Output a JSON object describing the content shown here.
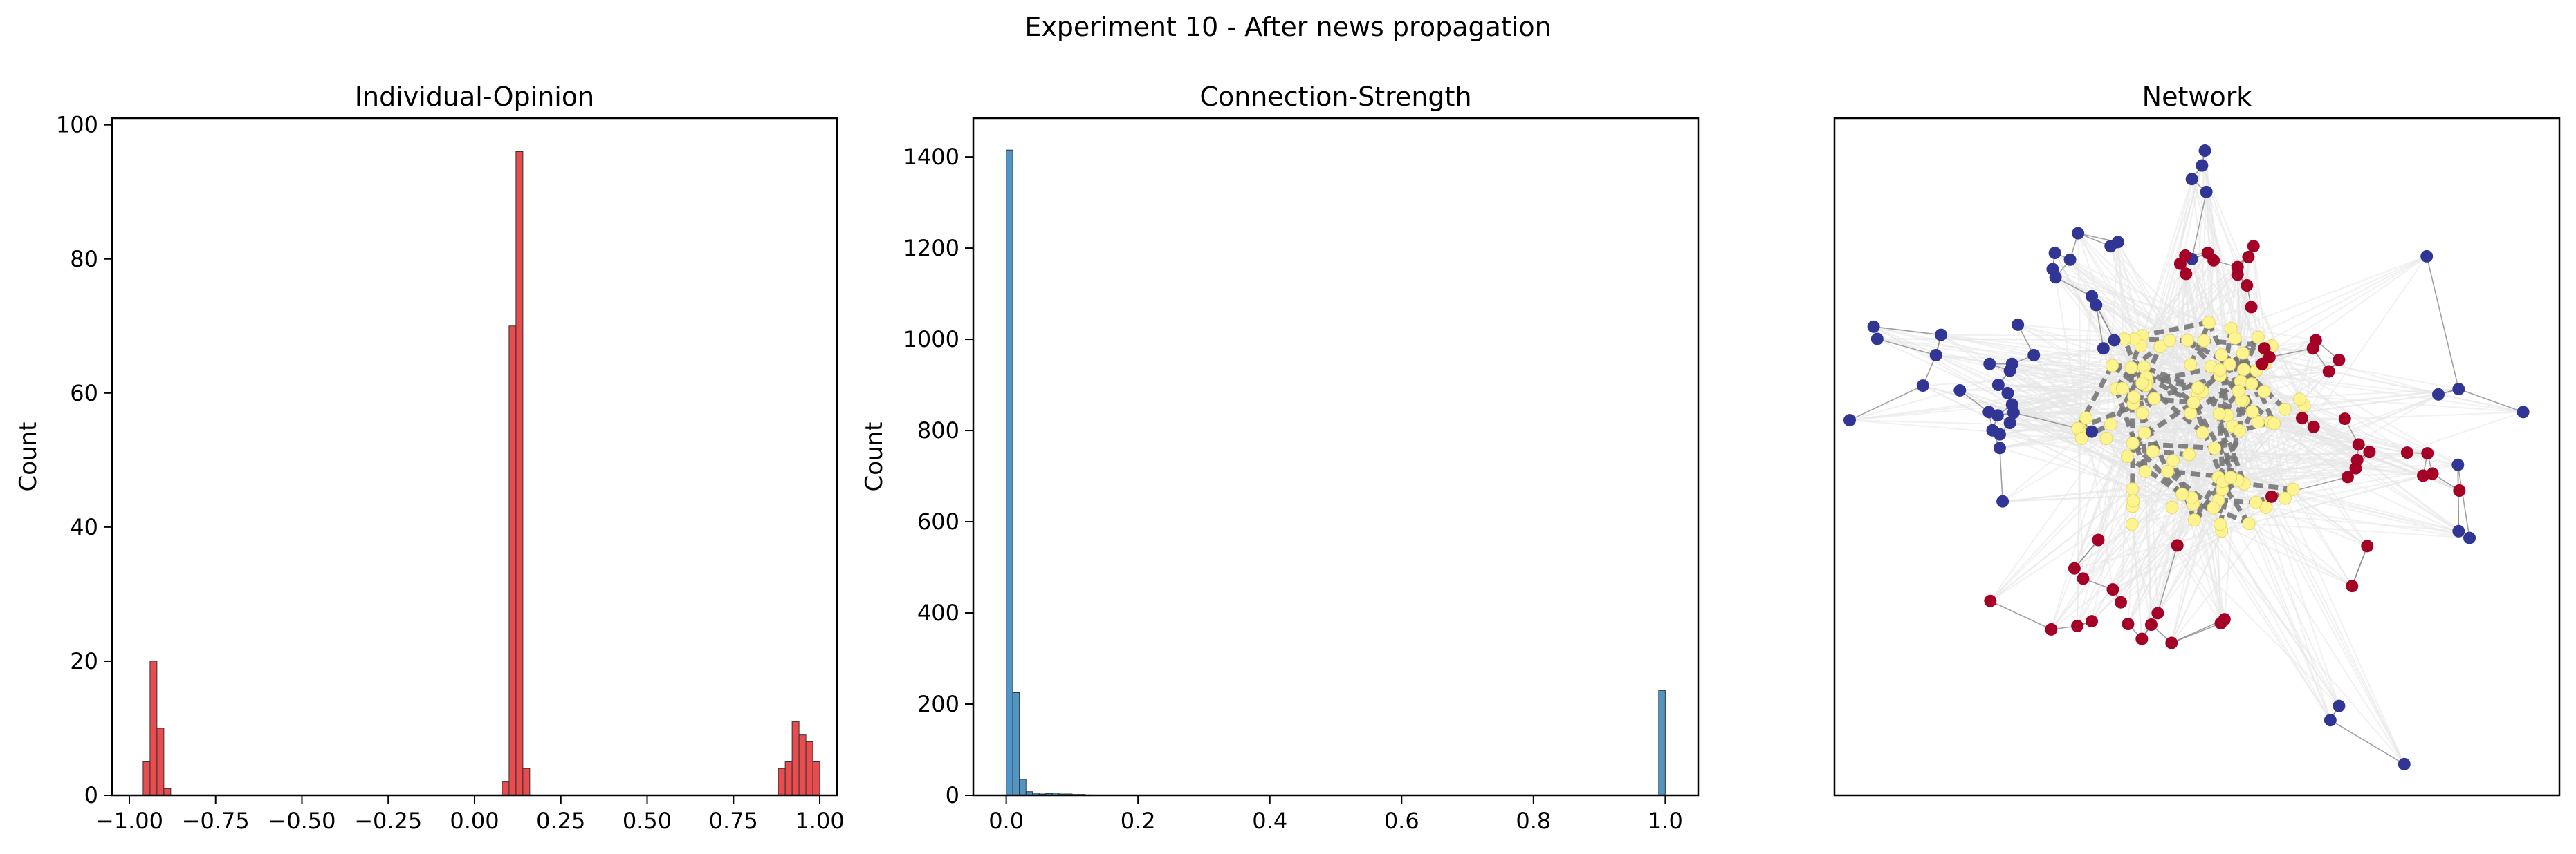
{
  "figure": {
    "suptitle": "Experiment 10 - After news propagation"
  },
  "colors": {
    "opinion_bar": "#e31a1c",
    "strength_bar": "#1f77b4",
    "yellow_node": "#fdf38f",
    "blue_node": "#313695",
    "red_node": "#a50026",
    "strong_edge": "#777777",
    "weak_edge": "#e6e6e6"
  },
  "chart_data": [
    {
      "type": "bar",
      "title": "Individual-Opinion",
      "xlabel": "",
      "ylabel": "Count",
      "xlim": [
        -1.05,
        1.05
      ],
      "ylim": [
        0,
        101
      ],
      "xticks": [
        -1.0,
        -0.75,
        -0.5,
        -0.25,
        0.0,
        0.25,
        0.5,
        0.75,
        1.0
      ],
      "xtick_labels": [
        "−1.00",
        "−0.75",
        "−0.50",
        "−0.25",
        "0.00",
        "0.25",
        "0.50",
        "0.75",
        "1.00"
      ],
      "yticks": [
        0,
        20,
        40,
        60,
        80,
        100
      ],
      "ytick_labels": [
        "0",
        "20",
        "40",
        "60",
        "80",
        "100"
      ],
      "bin_width": 0.02,
      "bins": [
        {
          "x": -0.96,
          "count": 5
        },
        {
          "x": -0.94,
          "count": 20
        },
        {
          "x": -0.92,
          "count": 10
        },
        {
          "x": -0.9,
          "count": 1
        },
        {
          "x": 0.08,
          "count": 2
        },
        {
          "x": 0.1,
          "count": 70
        },
        {
          "x": 0.12,
          "count": 96
        },
        {
          "x": 0.14,
          "count": 4
        },
        {
          "x": 0.88,
          "count": 4
        },
        {
          "x": 0.9,
          "count": 5
        },
        {
          "x": 0.92,
          "count": 11
        },
        {
          "x": 0.94,
          "count": 9
        },
        {
          "x": 0.96,
          "count": 8
        },
        {
          "x": 0.98,
          "count": 5
        }
      ]
    },
    {
      "type": "bar",
      "title": "Connection-Strength",
      "xlabel": "",
      "ylabel": "Count",
      "xlim": [
        -0.05,
        1.05
      ],
      "ylim": [
        0,
        1485
      ],
      "xticks": [
        0.0,
        0.2,
        0.4,
        0.6,
        0.8,
        1.0
      ],
      "xtick_labels": [
        "0.0",
        "0.2",
        "0.4",
        "0.6",
        "0.8",
        "1.0"
      ],
      "yticks": [
        0,
        200,
        400,
        600,
        800,
        1000,
        1200,
        1400
      ],
      "ytick_labels": [
        "0",
        "200",
        "400",
        "600",
        "800",
        "1000",
        "1200",
        "1400"
      ],
      "bin_width": 0.01,
      "bins": [
        {
          "x": 0.0,
          "count": 1415
        },
        {
          "x": 0.01,
          "count": 225
        },
        {
          "x": 0.02,
          "count": 35
        },
        {
          "x": 0.03,
          "count": 8
        },
        {
          "x": 0.04,
          "count": 5
        },
        {
          "x": 0.05,
          "count": 3
        },
        {
          "x": 0.06,
          "count": 4
        },
        {
          "x": 0.07,
          "count": 5
        },
        {
          "x": 0.08,
          "count": 3
        },
        {
          "x": 0.09,
          "count": 3
        },
        {
          "x": 0.1,
          "count": 2
        },
        {
          "x": 0.11,
          "count": 2
        },
        {
          "x": 0.12,
          "count": 1
        },
        {
          "x": 0.99,
          "count": 230
        }
      ]
    },
    {
      "type": "scatter",
      "title": "Network",
      "xlabel": "",
      "ylabel": "",
      "xlim": [
        0,
        100
      ],
      "ylim": [
        0,
        100
      ],
      "axis_ticks": "none",
      "yellow_center": [
        50,
        54
      ],
      "yellow_count": 100,
      "blue_nodes": [
        {
          "x": 51.1,
          "y": 95.2
        },
        {
          "x": 81.7,
          "y": 79.6
        },
        {
          "x": 38.1,
          "y": 81.1
        },
        {
          "x": 39.1,
          "y": 81.7
        },
        {
          "x": 35.5,
          "y": 73.7
        },
        {
          "x": 36.1,
          "y": 72.4
        },
        {
          "x": 38.6,
          "y": 67.2
        },
        {
          "x": 37.1,
          "y": 66.0
        },
        {
          "x": 33.6,
          "y": 83.0
        },
        {
          "x": 32.5,
          "y": 79.1
        },
        {
          "x": 30.4,
          "y": 80.1
        },
        {
          "x": 30.1,
          "y": 77.7
        },
        {
          "x": 30.5,
          "y": 76.5
        },
        {
          "x": 49.3,
          "y": 91.0
        },
        {
          "x": 51.3,
          "y": 89.1
        },
        {
          "x": 50.7,
          "y": 93.0
        },
        {
          "x": 49.3,
          "y": 79.2
        },
        {
          "x": 25.3,
          "y": 69.5
        },
        {
          "x": 24.5,
          "y": 63.7
        },
        {
          "x": 24.2,
          "y": 62.7
        },
        {
          "x": 22.6,
          "y": 60.6
        },
        {
          "x": 23.9,
          "y": 59.4
        },
        {
          "x": 24.5,
          "y": 57.7
        },
        {
          "x": 24.7,
          "y": 56.5
        },
        {
          "x": 22.5,
          "y": 56.1
        },
        {
          "x": 21.3,
          "y": 56.6
        },
        {
          "x": 21.8,
          "y": 53.9
        },
        {
          "x": 22.8,
          "y": 53.3
        },
        {
          "x": 22.8,
          "y": 51.3
        },
        {
          "x": 24.2,
          "y": 55.0
        },
        {
          "x": 23.2,
          "y": 43.4
        },
        {
          "x": 2.1,
          "y": 55.4
        },
        {
          "x": 5.9,
          "y": 67.4
        },
        {
          "x": 5.4,
          "y": 69.2
        },
        {
          "x": 12.2,
          "y": 60.5
        },
        {
          "x": 14.0,
          "y": 65.0
        },
        {
          "x": 14.7,
          "y": 68.0
        },
        {
          "x": 17.3,
          "y": 59.8
        },
        {
          "x": 21.4,
          "y": 63.7
        },
        {
          "x": 35.5,
          "y": 53.7
        },
        {
          "x": 83.3,
          "y": 59.2
        },
        {
          "x": 86.1,
          "y": 60.0
        },
        {
          "x": 95.0,
          "y": 56.6
        },
        {
          "x": 86.0,
          "y": 48.8
        },
        {
          "x": 86.1,
          "y": 39.0
        },
        {
          "x": 87.6,
          "y": 38.0
        },
        {
          "x": 68.4,
          "y": 11.1
        },
        {
          "x": 69.6,
          "y": 13.2
        },
        {
          "x": 78.6,
          "y": 4.6
        },
        {
          "x": 27.5,
          "y": 65.0
        }
      ],
      "red_nodes": [
        {
          "x": 47.7,
          "y": 78.5
        },
        {
          "x": 48.4,
          "y": 79.7
        },
        {
          "x": 48.5,
          "y": 77.0
        },
        {
          "x": 55.6,
          "y": 76.9
        },
        {
          "x": 55.6,
          "y": 78.0
        },
        {
          "x": 57.8,
          "y": 81.1
        },
        {
          "x": 57.1,
          "y": 79.5
        },
        {
          "x": 51.5,
          "y": 80.1
        },
        {
          "x": 52.3,
          "y": 79.0
        },
        {
          "x": 56.9,
          "y": 75.3
        },
        {
          "x": 57.5,
          "y": 72.1
        },
        {
          "x": 59.3,
          "y": 66.0
        },
        {
          "x": 60.0,
          "y": 64.7
        },
        {
          "x": 66.0,
          "y": 66.0
        },
        {
          "x": 66.4,
          "y": 67.2
        },
        {
          "x": 69.6,
          "y": 64.3
        },
        {
          "x": 68.2,
          "y": 62.6
        },
        {
          "x": 59.0,
          "y": 63.7
        },
        {
          "x": 66.1,
          "y": 54.4
        },
        {
          "x": 64.5,
          "y": 55.7
        },
        {
          "x": 70.4,
          "y": 55.6
        },
        {
          "x": 72.3,
          "y": 51.8
        },
        {
          "x": 73.8,
          "y": 50.7
        },
        {
          "x": 72.1,
          "y": 49.5
        },
        {
          "x": 71.9,
          "y": 48.3
        },
        {
          "x": 70.8,
          "y": 47.0
        },
        {
          "x": 79.0,
          "y": 50.6
        },
        {
          "x": 81.8,
          "y": 50.5
        },
        {
          "x": 81.2,
          "y": 47.2
        },
        {
          "x": 82.5,
          "y": 47.5
        },
        {
          "x": 86.2,
          "y": 45.0
        },
        {
          "x": 73.5,
          "y": 36.8
        },
        {
          "x": 71.4,
          "y": 30.9
        },
        {
          "x": 47.3,
          "y": 36.9
        },
        {
          "x": 36.4,
          "y": 37.7
        },
        {
          "x": 33.1,
          "y": 33.5
        },
        {
          "x": 34.3,
          "y": 32.0
        },
        {
          "x": 38.4,
          "y": 30.4
        },
        {
          "x": 39.5,
          "y": 28.5
        },
        {
          "x": 21.5,
          "y": 28.7
        },
        {
          "x": 33.5,
          "y": 25.0
        },
        {
          "x": 35.5,
          "y": 25.7
        },
        {
          "x": 40.5,
          "y": 25.3
        },
        {
          "x": 44.6,
          "y": 26.9
        },
        {
          "x": 42.4,
          "y": 23.1
        },
        {
          "x": 43.7,
          "y": 25.2
        },
        {
          "x": 53.3,
          "y": 25.4
        },
        {
          "x": 53.8,
          "y": 26.0
        },
        {
          "x": 46.5,
          "y": 22.5
        },
        {
          "x": 29.9,
          "y": 24.5
        },
        {
          "x": 60.3,
          "y": 44.1
        }
      ]
    }
  ]
}
